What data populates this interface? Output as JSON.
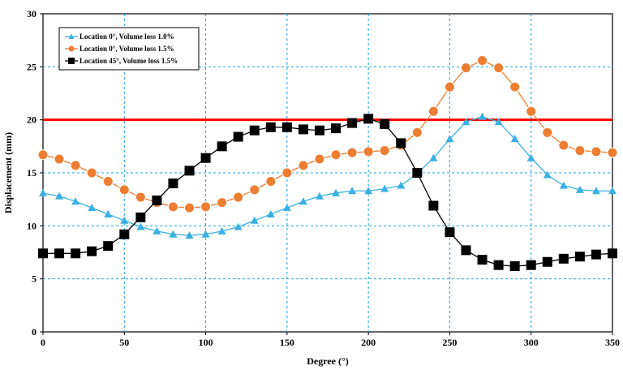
{
  "chart_data": {
    "type": "line",
    "xlabel": "Degree (°)",
    "ylabel": "Displacement (mm)",
    "xlim": [
      0,
      350
    ],
    "ylim": [
      0,
      30
    ],
    "xticks": [
      0,
      50,
      100,
      150,
      200,
      250,
      300,
      350
    ],
    "yticks": [
      0,
      5,
      10,
      15,
      20,
      25,
      30
    ],
    "grid": true,
    "legend_position": "top-left",
    "x": [
      0,
      10,
      20,
      30,
      40,
      50,
      60,
      70,
      80,
      90,
      100,
      110,
      120,
      130,
      140,
      150,
      160,
      170,
      180,
      190,
      200,
      210,
      220,
      230,
      240,
      250,
      260,
      270,
      280,
      290,
      300,
      310,
      320,
      330,
      340,
      350
    ],
    "series": [
      {
        "name": "Location 0°, Volume loss 1.0%",
        "marker": "triangle",
        "color": "#3ab0e2",
        "values": [
          13.1,
          12.8,
          12.3,
          11.7,
          11.1,
          10.5,
          9.9,
          9.5,
          9.2,
          9.1,
          9.2,
          9.5,
          9.9,
          10.5,
          11.1,
          11.7,
          12.3,
          12.8,
          13.1,
          13.3,
          13.3,
          13.5,
          13.8,
          14.9,
          16.4,
          18.2,
          19.8,
          20.3,
          19.8,
          18.2,
          16.4,
          14.8,
          13.8,
          13.4,
          13.3,
          13.3
        ]
      },
      {
        "name": "Location 0°, Volume loss 1.5%",
        "marker": "circle",
        "color": "#ed7d31",
        "values": [
          16.7,
          16.3,
          15.7,
          15.0,
          14.2,
          13.4,
          12.7,
          12.2,
          11.8,
          11.7,
          11.8,
          12.2,
          12.7,
          13.4,
          14.2,
          15.0,
          15.7,
          16.3,
          16.7,
          16.9,
          17.0,
          17.1,
          17.6,
          18.8,
          20.8,
          23.1,
          24.9,
          25.6,
          24.9,
          23.1,
          20.8,
          18.8,
          17.6,
          17.1,
          17.0,
          16.9
        ]
      },
      {
        "name": "Location 45°, Volume loss 1.5%",
        "marker": "square",
        "color": "#000000",
        "values": [
          7.4,
          7.4,
          7.4,
          7.6,
          8.1,
          9.2,
          10.8,
          12.4,
          14.0,
          15.2,
          16.4,
          17.5,
          18.4,
          19.0,
          19.3,
          19.3,
          19.1,
          19.0,
          19.2,
          19.7,
          20.1,
          19.6,
          17.8,
          15.0,
          11.9,
          9.4,
          7.7,
          6.8,
          6.3,
          6.2,
          6.3,
          6.6,
          6.9,
          7.1,
          7.3,
          7.4
        ]
      }
    ],
    "reference_line": {
      "y": 20,
      "color": "#ff0000"
    }
  }
}
